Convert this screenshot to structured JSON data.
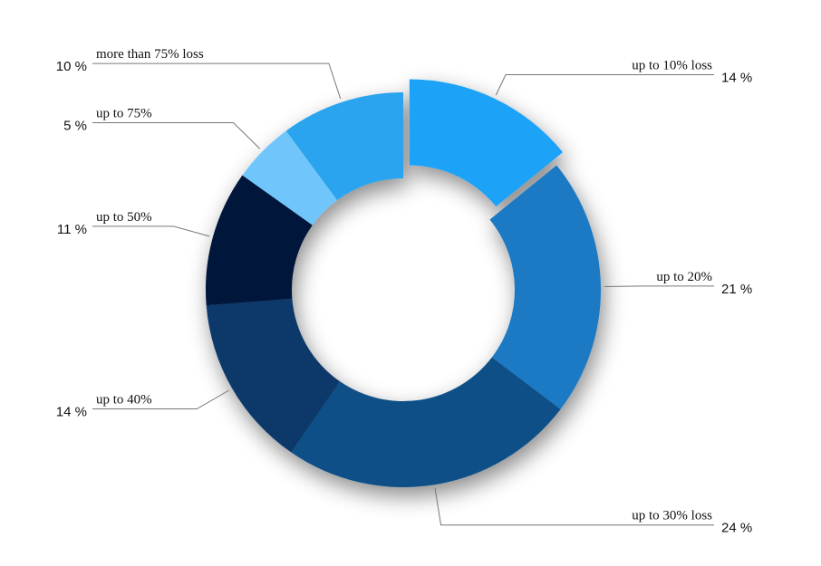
{
  "chart_data": {
    "type": "donut",
    "categories": [
      "up to 10% loss",
      "up to 20%",
      "up to 30% loss",
      "up to 40%",
      "up to 50%",
      "up to 75%",
      "more than 75% loss"
    ],
    "values": [
      14,
      21,
      24,
      14,
      11,
      5,
      10
    ],
    "value_labels": [
      "14 %",
      "21 %",
      "24 %",
      "14 %",
      "11 %",
      "5 %",
      "10 %"
    ],
    "colors": [
      "#1ea2f7",
      "#1a79c3",
      "#0b4f86",
      "#07386a",
      "#02183a",
      "#6fc6fb",
      "#2aa4ee"
    ],
    "exploded": [
      0
    ]
  }
}
